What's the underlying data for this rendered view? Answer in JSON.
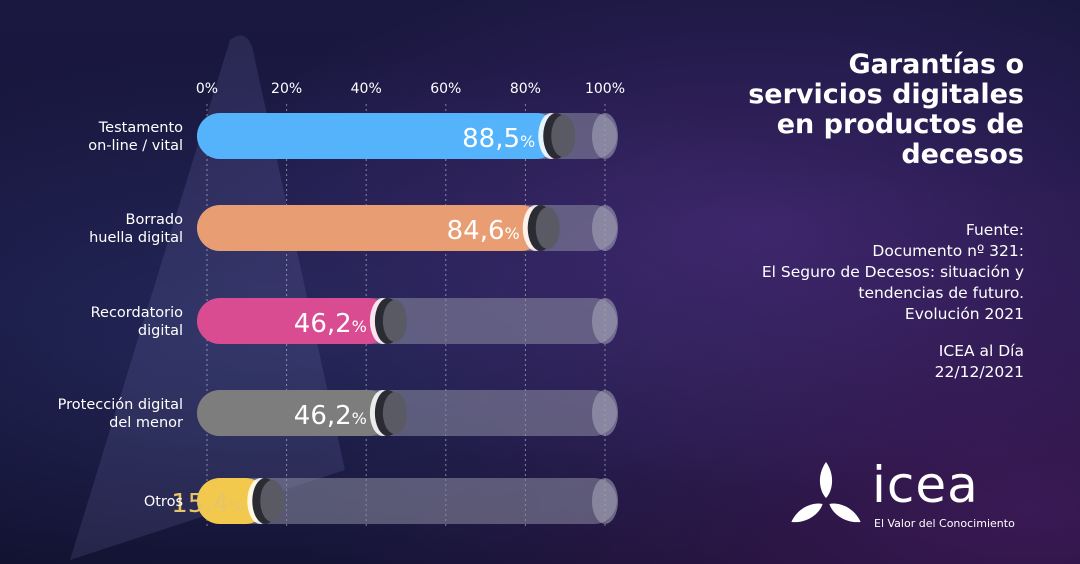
{
  "title_lines": [
    "Garantías o",
    "servicios digitales",
    "en productos de",
    "decesos"
  ],
  "source_lines": [
    "Fuente:",
    "Documento nº 321:",
    "El Seguro de Decesos: situación y",
    "tendencias de futuro.",
    "Evolución 2021"
  ],
  "date_lines": [
    "ICEA al Día",
    "22/12/2021"
  ],
  "logo": {
    "word": "icea",
    "tagline": "El Valor del Conocimiento"
  },
  "chart_data": {
    "type": "bar",
    "orientation": "horizontal",
    "title": "Garantías o servicios digitales en productos de decesos",
    "xlim": [
      0,
      100
    ],
    "x_ticks": [
      0,
      20,
      40,
      60,
      80,
      100
    ],
    "x_tick_labels": [
      "0%",
      "20%",
      "40%",
      "60%",
      "80%",
      "100%"
    ],
    "grid": "vertical",
    "categories": [
      [
        "Testamento",
        "on-line / vital"
      ],
      [
        "Borrado",
        "huella digital"
      ],
      [
        "Recordatorio",
        "digital"
      ],
      [
        "Protección digital",
        "del menor"
      ],
      [
        "Otros"
      ]
    ],
    "values": [
      88.5,
      84.6,
      46.2,
      46.2,
      15.4
    ],
    "value_labels": [
      "88,5",
      "84,6",
      "46,2",
      "46,2",
      "15,4"
    ],
    "value_unit": "%",
    "colors": [
      "#55b3fb",
      "#e89d73",
      "#d94c92",
      "#7d7d7d",
      "#f2c94c"
    ],
    "label_colors": [
      "#ffffff",
      "#ffffff",
      "#ffffff",
      "#ffffff",
      "#e6c468"
    ],
    "track_color": "#8e8ea3"
  }
}
